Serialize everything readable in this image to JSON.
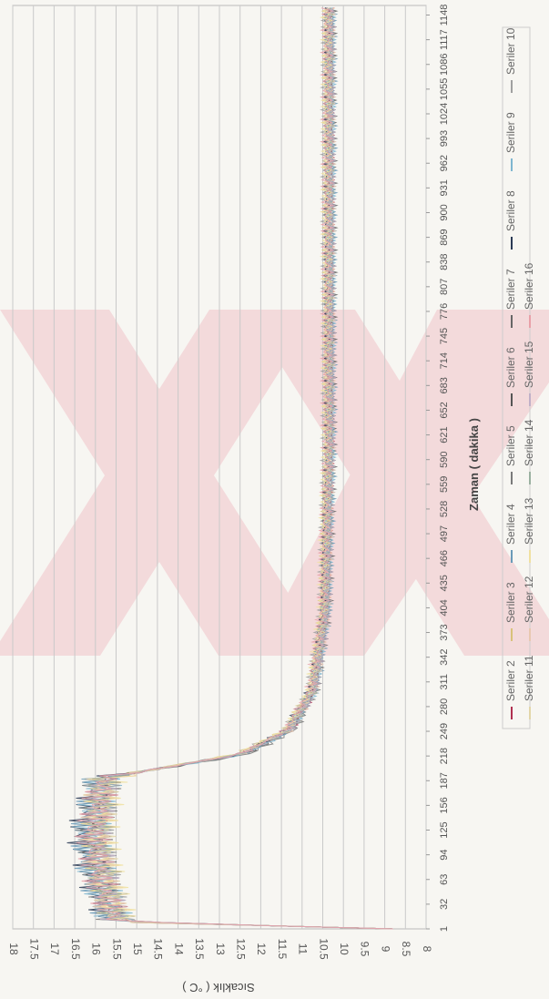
{
  "chart_data": {
    "type": "line",
    "orientation": "rotated-90",
    "xlabel": "Zaman ( dakika )",
    "ylabel": "Sıcaklık ( °C )",
    "ylim": [
      8,
      18
    ],
    "y_ticks": [
      "8",
      "8.5",
      "9",
      "9.5",
      "10",
      "10.5",
      "11",
      "11.5",
      "12",
      "12.5",
      "13",
      "13.5",
      "14",
      "14.5",
      "15",
      "15.5",
      "16",
      "16.5",
      "17",
      "17.5",
      "18"
    ],
    "x_ticks": [
      "1",
      "32",
      "63",
      "94",
      "125",
      "156",
      "187",
      "218",
      "249",
      "280",
      "311",
      "342",
      "373",
      "404",
      "435",
      "466",
      "497",
      "528",
      "559",
      "590",
      "621",
      "652",
      "683",
      "714",
      "745",
      "776",
      "807",
      "838",
      "869",
      "900",
      "931",
      "962",
      "993",
      "1024",
      "1055",
      "1086",
      "1117",
      "1148"
    ],
    "xlim": [
      1,
      1160
    ],
    "grid": true,
    "legend_position": "bottom",
    "series": [
      {
        "name": "Seriler 2",
        "color": "#b03050",
        "profile": [
          [
            1,
            8.8
          ],
          [
            10,
            15.5
          ],
          [
            60,
            15.8
          ],
          [
            120,
            16.0
          ],
          [
            190,
            15.8
          ],
          [
            220,
            12.5
          ],
          [
            250,
            11.3
          ],
          [
            300,
            10.7
          ],
          [
            400,
            10.4
          ],
          [
            600,
            10.3
          ],
          [
            900,
            10.3
          ],
          [
            1160,
            10.3
          ]
        ]
      },
      {
        "name": "Seriler 3",
        "color": "#d8c27a",
        "profile": [
          [
            1,
            8.8
          ],
          [
            10,
            15.5
          ],
          [
            60,
            15.9
          ],
          [
            120,
            16.0
          ],
          [
            190,
            15.9
          ],
          [
            220,
            12.6
          ],
          [
            250,
            11.4
          ],
          [
            300,
            10.8
          ],
          [
            400,
            10.5
          ],
          [
            600,
            10.4
          ],
          [
            900,
            10.4
          ],
          [
            1160,
            10.4
          ]
        ]
      },
      {
        "name": "Seriler 4",
        "color": "#6a9ab8",
        "profile": [
          [
            1,
            8.8
          ],
          [
            10,
            15.6
          ],
          [
            60,
            16.0
          ],
          [
            120,
            16.2
          ],
          [
            190,
            15.9
          ],
          [
            220,
            12.4
          ],
          [
            250,
            11.3
          ],
          [
            300,
            10.7
          ],
          [
            400,
            10.4
          ],
          [
            600,
            10.3
          ],
          [
            900,
            10.3
          ],
          [
            1160,
            10.3
          ]
        ]
      },
      {
        "name": "Seriler 5",
        "color": "#7a7a7a",
        "profile": [
          [
            1,
            8.8
          ],
          [
            10,
            15.5
          ],
          [
            60,
            15.8
          ],
          [
            120,
            16.0
          ],
          [
            190,
            15.8
          ],
          [
            220,
            12.3
          ],
          [
            250,
            11.2
          ],
          [
            300,
            10.7
          ],
          [
            400,
            10.4
          ],
          [
            600,
            10.3
          ],
          [
            900,
            10.3
          ],
          [
            1160,
            10.3
          ]
        ]
      },
      {
        "name": "Seriler 6",
        "color": "#555555",
        "profile": [
          [
            1,
            8.8
          ],
          [
            10,
            15.5
          ],
          [
            60,
            15.9
          ],
          [
            120,
            16.1
          ],
          [
            190,
            15.8
          ],
          [
            220,
            12.4
          ],
          [
            250,
            11.3
          ],
          [
            300,
            10.7
          ],
          [
            400,
            10.4
          ],
          [
            600,
            10.3
          ],
          [
            900,
            10.3
          ],
          [
            1160,
            10.3
          ]
        ]
      },
      {
        "name": "Seriler 7",
        "color": "#666666",
        "profile": [
          [
            1,
            8.8
          ],
          [
            10,
            15.5
          ],
          [
            60,
            15.8
          ],
          [
            120,
            16.0
          ],
          [
            190,
            15.8
          ],
          [
            220,
            12.5
          ],
          [
            250,
            11.3
          ],
          [
            300,
            10.7
          ],
          [
            400,
            10.4
          ],
          [
            600,
            10.3
          ],
          [
            900,
            10.3
          ],
          [
            1160,
            10.3
          ]
        ]
      },
      {
        "name": "Seriler 8",
        "color": "#2a3a55",
        "profile": [
          [
            1,
            8.8
          ],
          [
            10,
            15.6
          ],
          [
            60,
            16.0
          ],
          [
            120,
            16.3
          ],
          [
            190,
            15.9
          ],
          [
            220,
            12.5
          ],
          [
            250,
            11.4
          ],
          [
            300,
            10.8
          ],
          [
            400,
            10.5
          ],
          [
            600,
            10.4
          ],
          [
            900,
            10.4
          ],
          [
            1160,
            10.4
          ]
        ]
      },
      {
        "name": "Seriler 9",
        "color": "#7fb6d0",
        "profile": [
          [
            1,
            8.8
          ],
          [
            10,
            15.5
          ],
          [
            60,
            15.9
          ],
          [
            120,
            16.1
          ],
          [
            190,
            15.8
          ],
          [
            220,
            12.4
          ],
          [
            250,
            11.3
          ],
          [
            300,
            10.7
          ],
          [
            400,
            10.4
          ],
          [
            600,
            10.3
          ],
          [
            900,
            10.3
          ],
          [
            1160,
            10.3
          ]
        ]
      },
      {
        "name": "Seriler 10",
        "color": "#a0a0a0",
        "profile": [
          [
            1,
            8.8
          ],
          [
            10,
            15.4
          ],
          [
            60,
            15.7
          ],
          [
            120,
            15.9
          ],
          [
            190,
            15.7
          ],
          [
            220,
            12.6
          ],
          [
            250,
            11.4
          ],
          [
            300,
            10.8
          ],
          [
            400,
            10.5
          ],
          [
            600,
            10.4
          ],
          [
            900,
            10.4
          ],
          [
            1160,
            10.4
          ]
        ]
      },
      {
        "name": "Seriler 11",
        "color": "#e2d6a8",
        "profile": [
          [
            1,
            8.8
          ],
          [
            10,
            15.5
          ],
          [
            60,
            15.8
          ],
          [
            120,
            15.9
          ],
          [
            190,
            15.8
          ],
          [
            220,
            12.6
          ],
          [
            250,
            11.4
          ],
          [
            300,
            10.8
          ],
          [
            400,
            10.5
          ],
          [
            600,
            10.4
          ],
          [
            900,
            10.4
          ],
          [
            1160,
            10.4
          ]
        ]
      },
      {
        "name": "Seriler 12",
        "color": "#e8c8b0",
        "profile": [
          [
            1,
            8.8
          ],
          [
            10,
            15.5
          ],
          [
            60,
            15.8
          ],
          [
            120,
            16.0
          ],
          [
            190,
            15.8
          ],
          [
            220,
            12.5
          ],
          [
            250,
            11.3
          ],
          [
            300,
            10.7
          ],
          [
            400,
            10.4
          ],
          [
            600,
            10.3
          ],
          [
            900,
            10.3
          ],
          [
            1160,
            10.3
          ]
        ]
      },
      {
        "name": "Seriler 13",
        "color": "#f0e0a0",
        "profile": [
          [
            1,
            8.8
          ],
          [
            10,
            15.4
          ],
          [
            60,
            15.7
          ],
          [
            120,
            15.9
          ],
          [
            190,
            15.7
          ],
          [
            220,
            12.6
          ],
          [
            250,
            11.4
          ],
          [
            300,
            10.8
          ],
          [
            400,
            10.5
          ],
          [
            600,
            10.4
          ],
          [
            900,
            10.4
          ],
          [
            1160,
            10.4
          ]
        ]
      },
      {
        "name": "Seriler 14",
        "color": "#9ab0a0",
        "profile": [
          [
            1,
            8.8
          ],
          [
            10,
            15.5
          ],
          [
            60,
            15.8
          ],
          [
            120,
            16.0
          ],
          [
            190,
            15.8
          ],
          [
            220,
            12.5
          ],
          [
            250,
            11.3
          ],
          [
            300,
            10.7
          ],
          [
            400,
            10.4
          ],
          [
            600,
            10.3
          ],
          [
            900,
            10.3
          ],
          [
            1160,
            10.3
          ]
        ]
      },
      {
        "name": "Seriler 15",
        "color": "#c0b0c8",
        "profile": [
          [
            1,
            8.8
          ],
          [
            10,
            15.5
          ],
          [
            60,
            15.8
          ],
          [
            120,
            16.0
          ],
          [
            190,
            15.8
          ],
          [
            220,
            12.5
          ],
          [
            250,
            11.3
          ],
          [
            300,
            10.7
          ],
          [
            400,
            10.4
          ],
          [
            600,
            10.3
          ],
          [
            900,
            10.3
          ],
          [
            1160,
            10.3
          ]
        ]
      },
      {
        "name": "Seriler 16",
        "color": "#e8a0a8",
        "profile": [
          [
            1,
            8.8
          ],
          [
            10,
            15.5
          ],
          [
            60,
            15.9
          ],
          [
            120,
            16.1
          ],
          [
            190,
            15.8
          ],
          [
            220,
            12.5
          ],
          [
            250,
            11.4
          ],
          [
            300,
            10.8
          ],
          [
            400,
            10.5
          ],
          [
            600,
            10.4
          ],
          [
            900,
            10.4
          ],
          [
            1160,
            10.4
          ]
        ]
      }
    ]
  }
}
